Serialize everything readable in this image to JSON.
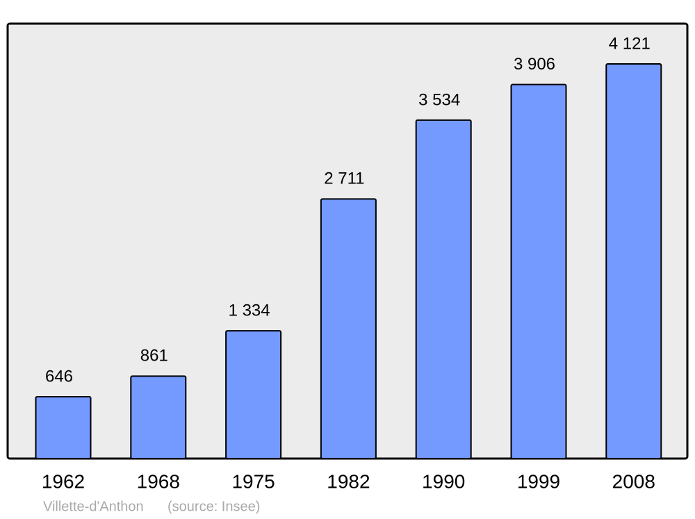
{
  "chart_data": {
    "type": "bar",
    "categories": [
      "1962",
      "1968",
      "1975",
      "1982",
      "1990",
      "1999",
      "2008"
    ],
    "values": [
      646,
      861,
      1334,
      2711,
      3534,
      3906,
      4121
    ],
    "value_labels": [
      "646",
      "861",
      "1 334",
      "2 711",
      "3 534",
      "3 906",
      "4 121"
    ],
    "color": "#7499ff",
    "caption": "Villette-d'Anthon",
    "source": "(source: Insee)"
  }
}
